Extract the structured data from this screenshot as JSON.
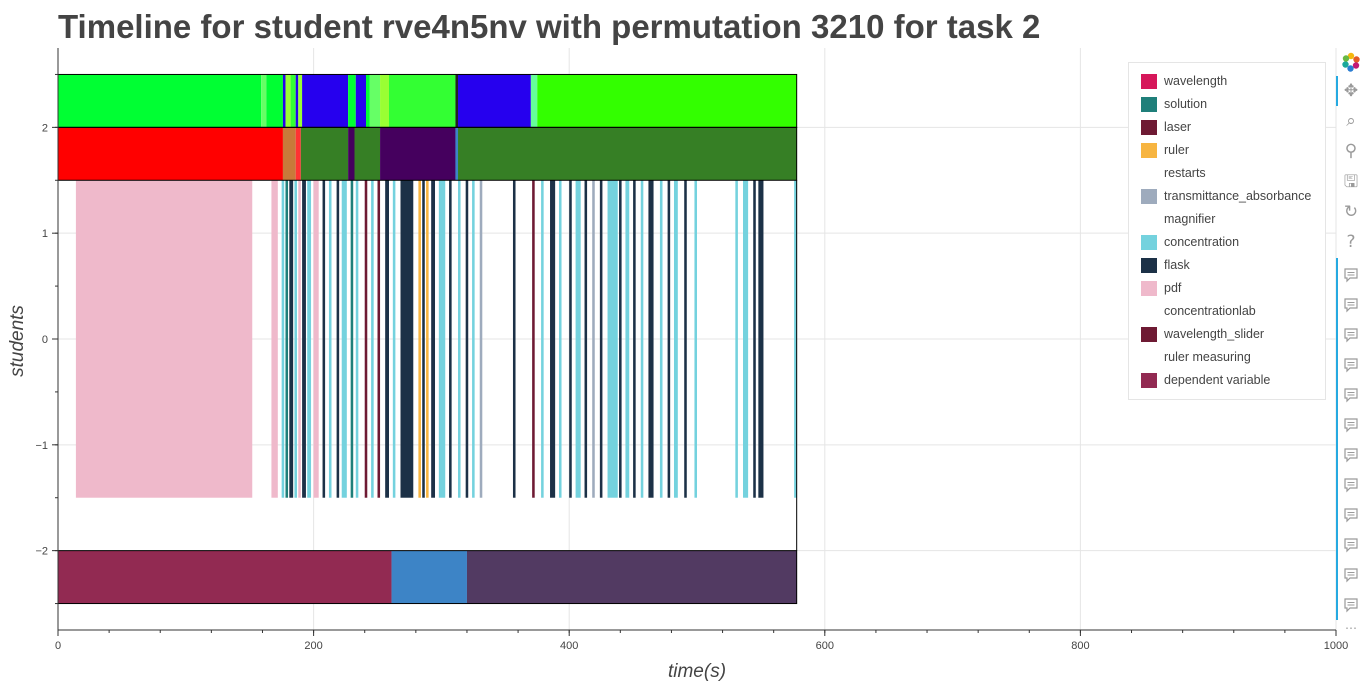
{
  "title": "Timeline for student rve4n5nv with permutation 3210 for task 2",
  "chart_data": {
    "type": "timeline",
    "title": "Timeline for student rve4n5nv with permutation 3210 for task 2",
    "xlabel": "time(s)",
    "ylabel": "students",
    "xlim": [
      0,
      1000
    ],
    "ylim": [
      -2.75,
      2.75
    ],
    "x_ticks": [
      0,
      200,
      400,
      600,
      800,
      1000
    ],
    "y_ticks": [
      -2,
      -1,
      0,
      1,
      2
    ],
    "x_tick_labels": [
      "0",
      "200",
      "400",
      "600",
      "800",
      "1000"
    ],
    "y_tick_labels": [
      "−2",
      "−1",
      "0",
      "1",
      "2"
    ],
    "grid": true,
    "legend_position": "top-right",
    "legend": [
      {
        "label": "wavelength",
        "color": "#d6175a"
      },
      {
        "label": "solution",
        "color": "#1f7f7a"
      },
      {
        "label": "laser",
        "color": "#6e1a33"
      },
      {
        "label": "ruler",
        "color": "#f7b541"
      },
      {
        "label": "restarts",
        "color": ""
      },
      {
        "label": "transmittance_absorbance",
        "color": "#9eabbd"
      },
      {
        "label": "magnifier",
        "color": ""
      },
      {
        "label": "concentration",
        "color": "#74d2de"
      },
      {
        "label": "flask",
        "color": "#1c3147"
      },
      {
        "label": "pdf",
        "color": "#efb9cb"
      },
      {
        "label": "concentrationlab",
        "color": ""
      },
      {
        "label": "wavelength_slider",
        "color": "#6e1a33"
      },
      {
        "label": "ruler measuring",
        "color": ""
      },
      {
        "label": "dependent variable",
        "color": "#922a52"
      }
    ],
    "rows": [
      {
        "y_range": [
          2.0,
          2.5
        ],
        "segments": [
          {
            "start": 0,
            "end": 159,
            "color": "#00ff33"
          },
          {
            "start": 159,
            "end": 163,
            "color": "#66ff66"
          },
          {
            "start": 163,
            "end": 176,
            "color": "#00ff33"
          },
          {
            "start": 176,
            "end": 178,
            "color": "#2600ee"
          },
          {
            "start": 178,
            "end": 182,
            "color": "#99ff33"
          },
          {
            "start": 182,
            "end": 186,
            "color": "#33ff33"
          },
          {
            "start": 186,
            "end": 188,
            "color": "#2600ee"
          },
          {
            "start": 188,
            "end": 191,
            "color": "#99ff33"
          },
          {
            "start": 191,
            "end": 227,
            "color": "#2600ee"
          },
          {
            "start": 227,
            "end": 233,
            "color": "#00ff33"
          },
          {
            "start": 233,
            "end": 241,
            "color": "#2600ee"
          },
          {
            "start": 241,
            "end": 244,
            "color": "#00ff33"
          },
          {
            "start": 244,
            "end": 252,
            "color": "#66ff66"
          },
          {
            "start": 252,
            "end": 259,
            "color": "#99ff33"
          },
          {
            "start": 259,
            "end": 311,
            "color": "#33ff33"
          },
          {
            "start": 311,
            "end": 313,
            "color": "#222222"
          },
          {
            "start": 313,
            "end": 370,
            "color": "#2600ee"
          },
          {
            "start": 370,
            "end": 375,
            "color": "#66ff99"
          },
          {
            "start": 375,
            "end": 578,
            "color": "#33ff00"
          }
        ]
      },
      {
        "y_range": [
          1.5,
          2.0
        ],
        "segments": [
          {
            "start": 0,
            "end": 176,
            "color": "#ff0000"
          },
          {
            "start": 176,
            "end": 186,
            "color": "#c87a3a"
          },
          {
            "start": 186,
            "end": 190,
            "color": "#ff3333"
          },
          {
            "start": 190,
            "end": 227,
            "color": "#367f25"
          },
          {
            "start": 227,
            "end": 232,
            "color": "#45005e"
          },
          {
            "start": 232,
            "end": 252,
            "color": "#367f25"
          },
          {
            "start": 252,
            "end": 311,
            "color": "#45005e"
          },
          {
            "start": 311,
            "end": 313,
            "color": "#3c84c8"
          },
          {
            "start": 313,
            "end": 578,
            "color": "#367f25"
          }
        ]
      },
      {
        "y_range": [
          -1.5,
          1.5
        ],
        "segments": [
          {
            "start": 14,
            "end": 152,
            "color": "#efb9cb"
          },
          {
            "start": 167,
            "end": 172,
            "color": "#efb9cb"
          },
          {
            "start": 175,
            "end": 177,
            "color": "#74d2de"
          },
          {
            "start": 178,
            "end": 180,
            "color": "#1f7f7a"
          },
          {
            "start": 181,
            "end": 184,
            "color": "#1c3147"
          },
          {
            "start": 185,
            "end": 187,
            "color": "#74d2de"
          },
          {
            "start": 188,
            "end": 190,
            "color": "#efb9cb"
          },
          {
            "start": 191,
            "end": 194,
            "color": "#1c3147"
          },
          {
            "start": 195,
            "end": 198,
            "color": "#74d2de"
          },
          {
            "start": 200,
            "end": 204,
            "color": "#efb9cb"
          },
          {
            "start": 207,
            "end": 209,
            "color": "#1c3147"
          },
          {
            "start": 212,
            "end": 214,
            "color": "#74d2de"
          },
          {
            "start": 218,
            "end": 220,
            "color": "#1c3147"
          },
          {
            "start": 222,
            "end": 226,
            "color": "#74d2de"
          },
          {
            "start": 229,
            "end": 231,
            "color": "#1f7f7a"
          },
          {
            "start": 233,
            "end": 235,
            "color": "#74d2de"
          },
          {
            "start": 240,
            "end": 242,
            "color": "#6e1a33"
          },
          {
            "start": 245,
            "end": 247,
            "color": "#74d2de"
          },
          {
            "start": 250,
            "end": 252,
            "color": "#6e1a33"
          },
          {
            "start": 256,
            "end": 259,
            "color": "#1c3147"
          },
          {
            "start": 262,
            "end": 264,
            "color": "#74d2de"
          },
          {
            "start": 268,
            "end": 278,
            "color": "#1c3147"
          },
          {
            "start": 282,
            "end": 284,
            "color": "#f7b541"
          },
          {
            "start": 285,
            "end": 287,
            "color": "#1c3147"
          },
          {
            "start": 288,
            "end": 290,
            "color": "#f7b541"
          },
          {
            "start": 292,
            "end": 295,
            "color": "#1c3147"
          },
          {
            "start": 298,
            "end": 303,
            "color": "#74d2de"
          },
          {
            "start": 306,
            "end": 308,
            "color": "#1c3147"
          },
          {
            "start": 313,
            "end": 315,
            "color": "#74d2de"
          },
          {
            "start": 319,
            "end": 321,
            "color": "#1c3147"
          },
          {
            "start": 324,
            "end": 326,
            "color": "#74d2de"
          },
          {
            "start": 330,
            "end": 332,
            "color": "#9eabbd"
          },
          {
            "start": 356,
            "end": 358,
            "color": "#1c3147"
          },
          {
            "start": 371,
            "end": 373,
            "color": "#6e1a33"
          },
          {
            "start": 378,
            "end": 380,
            "color": "#74d2de"
          },
          {
            "start": 385,
            "end": 389,
            "color": "#1c3147"
          },
          {
            "start": 392,
            "end": 394,
            "color": "#74d2de"
          },
          {
            "start": 400,
            "end": 402,
            "color": "#1c3147"
          },
          {
            "start": 405,
            "end": 409,
            "color": "#74d2de"
          },
          {
            "start": 412,
            "end": 414,
            "color": "#1c3147"
          },
          {
            "start": 418,
            "end": 420,
            "color": "#9eabbd"
          },
          {
            "start": 424,
            "end": 426,
            "color": "#1c3147"
          },
          {
            "start": 430,
            "end": 438,
            "color": "#74d2de"
          },
          {
            "start": 439,
            "end": 441,
            "color": "#1c3147"
          },
          {
            "start": 444,
            "end": 447,
            "color": "#74d2de"
          },
          {
            "start": 450,
            "end": 452,
            "color": "#1c3147"
          },
          {
            "start": 456,
            "end": 458,
            "color": "#74d2de"
          },
          {
            "start": 462,
            "end": 466,
            "color": "#1c3147"
          },
          {
            "start": 471,
            "end": 473,
            "color": "#74d2de"
          },
          {
            "start": 477,
            "end": 479,
            "color": "#1c3147"
          },
          {
            "start": 482,
            "end": 485,
            "color": "#74d2de"
          },
          {
            "start": 490,
            "end": 492,
            "color": "#1c3147"
          },
          {
            "start": 498,
            "end": 500,
            "color": "#74d2de"
          },
          {
            "start": 530,
            "end": 532,
            "color": "#74d2de"
          },
          {
            "start": 536,
            "end": 540,
            "color": "#74d2de"
          },
          {
            "start": 544,
            "end": 546,
            "color": "#1c3147"
          },
          {
            "start": 548,
            "end": 552,
            "color": "#1c3147"
          },
          {
            "start": 576,
            "end": 578,
            "color": "#74d2de"
          }
        ]
      },
      {
        "y_range": [
          -2.5,
          -2.0
        ],
        "segments": [
          {
            "start": 0,
            "end": 261,
            "color": "#922a52"
          },
          {
            "start": 261,
            "end": 320,
            "color": "#3d84c6"
          },
          {
            "start": 320,
            "end": 578,
            "color": "#523a62"
          }
        ]
      }
    ]
  }
}
